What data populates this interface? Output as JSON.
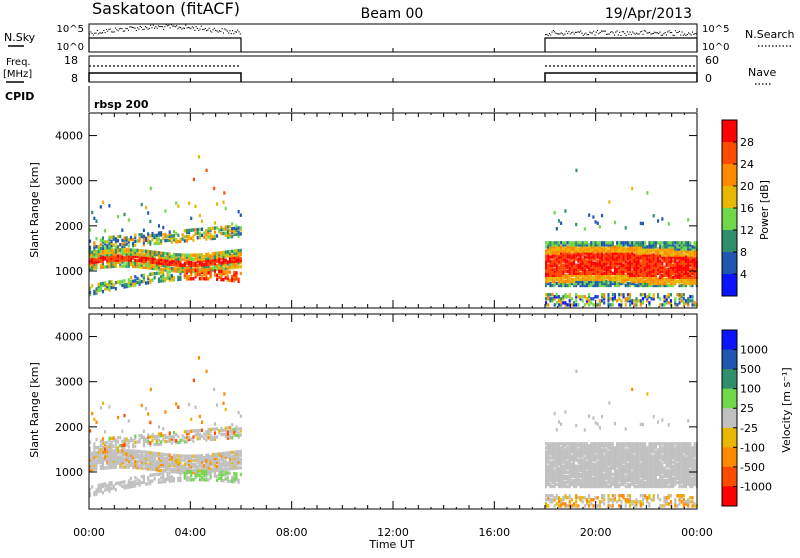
{
  "header": {
    "station": "Saskatoon (fitACF)",
    "beam": "Beam 00",
    "date": "19/Apr/2013"
  },
  "top_panels": {
    "nsky_label": "N.Sky",
    "nsky_ticks": [
      "10^5",
      "10^0"
    ],
    "nsearch_label": "N.Search",
    "nsearch_ticks": [
      "10^5",
      "10^0"
    ],
    "freq_label": "Freq.",
    "freq_unit": "[MHz]",
    "freq_ticks": [
      "18",
      "8"
    ],
    "nave_label": "Nave",
    "nave_ticks": [
      "60",
      "0"
    ],
    "cpid_label": "CPID",
    "cpid_text": "rbsp 200"
  },
  "chart_data": [
    {
      "type": "heatmap",
      "panel": "power",
      "ylabel": "Slant Range [km]",
      "xlabel": "Time UT",
      "ylim": [
        180,
        4500
      ],
      "yticks": [
        1000,
        2000,
        3000,
        4000
      ],
      "xticks": [
        "00:00",
        "04:00",
        "08:00",
        "12:00",
        "16:00",
        "20:00",
        "00:00"
      ],
      "x_hours": [
        0,
        4,
        8,
        12,
        16,
        20,
        24
      ],
      "data_intervals_hours": [
        [
          0.0,
          6.0
        ],
        [
          18.0,
          24.0
        ]
      ],
      "colorbar": {
        "label": "Power [dB]",
        "ticks": [
          "28",
          "24",
          "20",
          "16",
          "12",
          "8",
          "4"
        ],
        "range": [
          0,
          32
        ],
        "colors": [
          "#0a14ff",
          "#1f56b0",
          "#2f8f6a",
          "#6fd84a",
          "#e8b800",
          "#ff8a00",
          "#ff4a00",
          "#ff0000"
        ]
      }
    },
    {
      "type": "heatmap",
      "panel": "velocity",
      "ylabel": "Slant Range [km]",
      "xlabel": "Time UT",
      "ylim": [
        180,
        4500
      ],
      "yticks": [
        1000,
        2000,
        3000,
        4000
      ],
      "xticks": [
        "00:00",
        "04:00",
        "08:00",
        "12:00",
        "16:00",
        "20:00",
        "00:00"
      ],
      "x_hours": [
        0,
        4,
        8,
        12,
        16,
        20,
        24
      ],
      "data_intervals_hours": [
        [
          0.0,
          6.0
        ],
        [
          18.0,
          24.0
        ]
      ],
      "colorbar": {
        "label": "Velocity [m s⁻¹]",
        "ticks": [
          "1000",
          "500",
          "100",
          "25",
          "-25",
          "-100",
          "-500",
          "-1000"
        ],
        "colors": [
          "#0a14ff",
          "#1f56b0",
          "#2f8f6a",
          "#6fd84a",
          "#c0c0c0",
          "#e8b800",
          "#ff8a00",
          "#ff4a00",
          "#ff0000"
        ]
      }
    }
  ],
  "xaxis": {
    "label": "Time UT",
    "ticks": [
      "00:00",
      "04:00",
      "08:00",
      "12:00",
      "16:00",
      "20:00",
      "00:00"
    ]
  },
  "colors": {
    "ground_scatter": "#c0c0c0",
    "axis": "#000000"
  }
}
